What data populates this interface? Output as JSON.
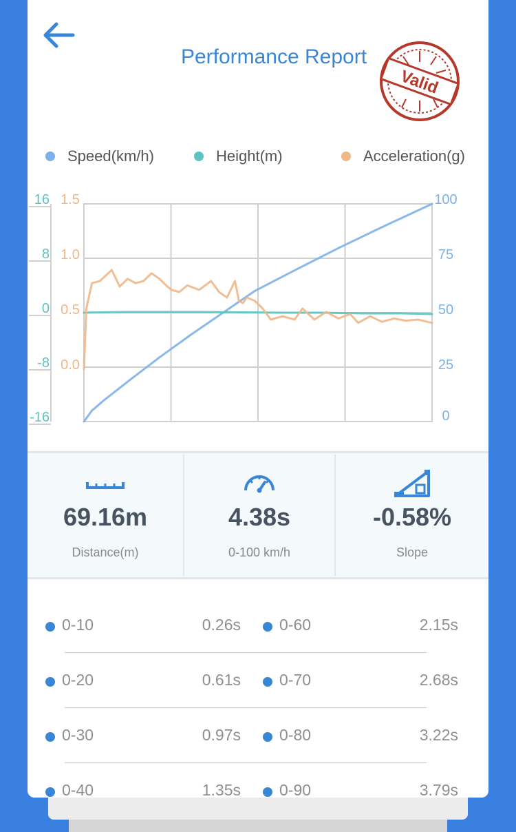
{
  "header": {
    "title": "Performance Report",
    "stamp_text": "Valid",
    "back_icon": "back-arrow-icon",
    "accent_color": "#3a86d6",
    "stamp_color": "#b5392b"
  },
  "chart_data": {
    "type": "line",
    "legend": [
      {
        "name": "Speed(km/h)",
        "color": "#7cb0e8"
      },
      {
        "name": "Height(m)",
        "color": "#5cc4c0"
      },
      {
        "name": "Acceleration(g)",
        "color": "#f0b787"
      }
    ],
    "axes": {
      "height_ticks": [
        "16",
        "8",
        "0",
        "-8",
        "-16"
      ],
      "height_range": [
        -16,
        16
      ],
      "accel_ticks": [
        "1.5",
        "1.0",
        "0.5",
        "0.0"
      ],
      "accel_range": [
        0.0,
        1.5
      ],
      "speed_ticks": [
        "100",
        "75",
        "50",
        "25",
        "0"
      ],
      "speed_range": [
        0,
        100
      ]
    },
    "x_range": [
      0,
      4.38
    ],
    "grid": true,
    "series": [
      {
        "name": "Speed(km/h)",
        "x": [
          0,
          0.1,
          0.26,
          0.61,
          0.97,
          1.35,
          1.75,
          2.15,
          2.68,
          3.22,
          3.79,
          4.38
        ],
        "values": [
          0,
          5,
          10,
          20,
          30,
          40,
          50,
          60,
          70,
          80,
          90,
          100
        ]
      },
      {
        "name": "Height(m)",
        "x": [
          0,
          0.5,
          1.0,
          1.5,
          2.0,
          2.5,
          3.0,
          3.5,
          4.0,
          4.38
        ],
        "values": [
          0.0,
          0.1,
          0.1,
          0.1,
          0.05,
          0.0,
          0.0,
          -0.1,
          -0.1,
          -0.2
        ]
      },
      {
        "name": "Acceleration(g)",
        "x": [
          0,
          0.03,
          0.1,
          0.2,
          0.35,
          0.45,
          0.55,
          0.65,
          0.75,
          0.85,
          0.95,
          1.05,
          1.1,
          1.2,
          1.3,
          1.45,
          1.6,
          1.7,
          1.8,
          1.9,
          1.95,
          2.0,
          2.05,
          2.15,
          2.25,
          2.35,
          2.5,
          2.65,
          2.75,
          2.9,
          3.05,
          3.2,
          3.35,
          3.45,
          3.6,
          3.75,
          3.9,
          4.05,
          4.2,
          4.38
        ],
        "values": [
          0.0,
          0.55,
          0.78,
          0.8,
          0.9,
          0.75,
          0.82,
          0.78,
          0.8,
          0.87,
          0.82,
          0.75,
          0.72,
          0.7,
          0.76,
          0.72,
          0.8,
          0.7,
          0.65,
          0.8,
          0.62,
          0.6,
          0.65,
          0.62,
          0.55,
          0.45,
          0.48,
          0.45,
          0.55,
          0.45,
          0.52,
          0.46,
          0.5,
          0.42,
          0.48,
          0.43,
          0.46,
          0.44,
          0.45,
          0.42
        ]
      }
    ]
  },
  "stats": [
    {
      "icon": "ruler-icon",
      "value": "69.16m",
      "label": "Distance(m)"
    },
    {
      "icon": "speedometer-icon",
      "value": "4.38s",
      "label": "0-100 km/h"
    },
    {
      "icon": "slope-icon",
      "value": "-0.58%",
      "label": "Slope"
    }
  ],
  "splits": [
    {
      "left_label": "0-10",
      "left_time": "0.26s",
      "right_label": "0-60",
      "right_time": "2.15s"
    },
    {
      "left_label": "0-20",
      "left_time": "0.61s",
      "right_label": "0-70",
      "right_time": "2.68s"
    },
    {
      "left_label": "0-30",
      "left_time": "0.97s",
      "right_label": "0-80",
      "right_time": "3.22s"
    },
    {
      "left_label": "0-40",
      "left_time": "1.35s",
      "right_label": "0-90",
      "right_time": "3.79s"
    }
  ]
}
